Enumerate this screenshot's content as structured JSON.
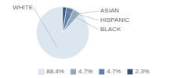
{
  "chart_data": {
    "type": "pie",
    "categories": [
      "WHITE",
      "ASIAN",
      "HISPANIC",
      "BLACK"
    ],
    "values": [
      88.4,
      4.7,
      4.7,
      2.3
    ],
    "value_labels": [
      "88.4%",
      "4.7%",
      "4.7%",
      "2.3%"
    ],
    "colors": [
      "#dce6f1",
      "#8eaabe",
      "#5b7fa6",
      "#2f5070"
    ],
    "legend": "bottom"
  }
}
